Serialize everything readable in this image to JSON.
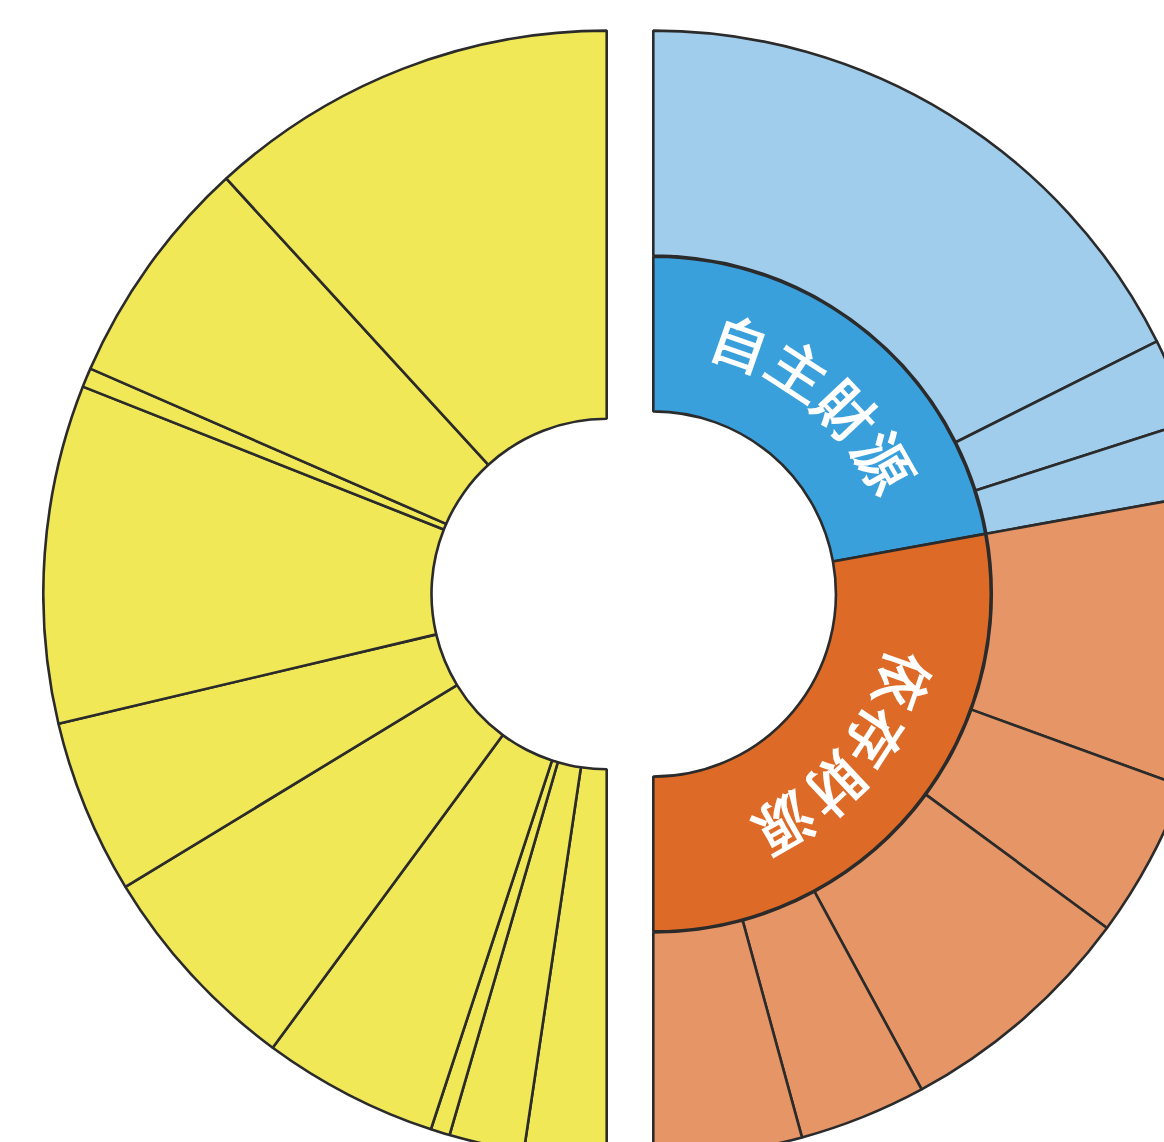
{
  "chart_data": [
    {
      "type": "donut",
      "categories": [
        null,
        null,
        null,
        null,
        null,
        null,
        null,
        null,
        null,
        null
      ],
      "values": [
        4.7,
        4.3,
        1.1,
        10.1,
        12.4,
        10.0,
        19.4,
        1.1,
        13.3,
        23.6
      ],
      "colors": [
        "#f0e856",
        "#f0e856",
        "#f0e856",
        "#f0e856",
        "#f0e856",
        "#f0e856",
        "#f0e856",
        "#f0e856",
        "#f0e856",
        "#f0e856"
      ]
    },
    {
      "type": "donut",
      "categories": [
        null,
        null,
        null,
        null,
        null,
        null,
        null,
        null
      ],
      "values": [
        35.2,
        4.9,
        4.2,
        16.8,
        9.1,
        14.0,
        7.3,
        8.5
      ],
      "colors": [
        "#a0cdec",
        "#a0cdec",
        "#a0cdec",
        "#e59566",
        "#e59566",
        "#e59566",
        "#e59566",
        "#e59566"
      ]
    },
    {
      "type": "donut",
      "categories": [
        "自主財源",
        "依存財源"
      ],
      "values": [
        44.3,
        55.7
      ],
      "colors": [
        "#3aa0dc",
        "#dd6b27"
      ]
    }
  ]
}
